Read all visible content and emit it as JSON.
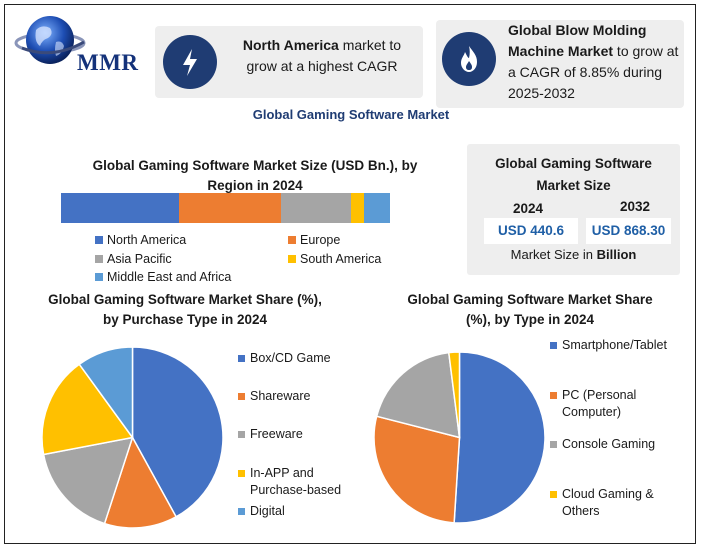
{
  "logo": {
    "text": "MMR"
  },
  "info_box_1": {
    "bold": "North America",
    "rest": " market to grow at a highest CAGR",
    "icon": "lightning-icon"
  },
  "info_box_2": {
    "bold": "Global Blow Molding Machine Market",
    "rest": " to grow at a CAGR of 8.85% during 2025-2032",
    "icon": "flame-icon"
  },
  "main_title": "Global Gaming Software Market",
  "market_size": {
    "title": "Global Gaming Software Market Size",
    "year_1": "2024",
    "value_1": "USD 440.6",
    "year_2": "2032",
    "value_2": "USD 868.30",
    "footer_pre": "Market Size in ",
    "footer_bold": "Billion"
  },
  "colors": {
    "blue": "#4472c4",
    "orange": "#ed7d31",
    "gray": "#a5a5a5",
    "yellow": "#ffc000",
    "lightblue": "#5b9bd5",
    "navy": "#1f3c73"
  },
  "chart_data": [
    {
      "type": "bar",
      "stacked": true,
      "orientation": "horizontal",
      "title": "Global Gaming Software Market Size (USD Bn.), by Region in 2024",
      "categories": [
        "2024"
      ],
      "series": [
        {
          "name": "North America",
          "values": [
            36
          ],
          "color": "#4472c4"
        },
        {
          "name": "Europe",
          "values": [
            31
          ],
          "color": "#ed7d31"
        },
        {
          "name": "Asia Pacific",
          "values": [
            21
          ],
          "color": "#a5a5a5"
        },
        {
          "name": "South America",
          "values": [
            4
          ],
          "color": "#ffc000"
        },
        {
          "name": "Middle East and Africa",
          "values": [
            8
          ],
          "color": "#5b9bd5"
        }
      ]
    },
    {
      "type": "pie",
      "title": "Global Gaming Software Market Share (%), by Purchase Type in 2024",
      "labels": [
        "Box/CD Game",
        "Shareware",
        "Freeware",
        "In-APP and Purchase-based",
        "Digital"
      ],
      "legend_lines": [
        [
          "Box/CD Game"
        ],
        [
          "Shareware"
        ],
        [
          "Freeware"
        ],
        [
          "In-APP and",
          "Purchase-based"
        ],
        [
          "Digital"
        ]
      ],
      "values": [
        42,
        13,
        17,
        18,
        10
      ],
      "colors": [
        "#4472c4",
        "#ed7d31",
        "#a5a5a5",
        "#ffc000",
        "#5b9bd5"
      ]
    },
    {
      "type": "pie",
      "title": "Global Gaming Software Market Share (%), by Type in 2024",
      "labels": [
        "Smartphone/Tablet",
        "PC (Personal Computer)",
        "Console Gaming",
        "Cloud Gaming & Others"
      ],
      "legend_lines": [
        [
          "Smartphone/Tablet"
        ],
        [
          "PC (Personal",
          "Computer)"
        ],
        [
          "Console Gaming"
        ],
        [
          "Cloud Gaming &",
          "Others"
        ]
      ],
      "values": [
        51,
        28,
        19,
        2
      ],
      "colors": [
        "#4472c4",
        "#ed7d31",
        "#a5a5a5",
        "#ffc000"
      ]
    }
  ]
}
